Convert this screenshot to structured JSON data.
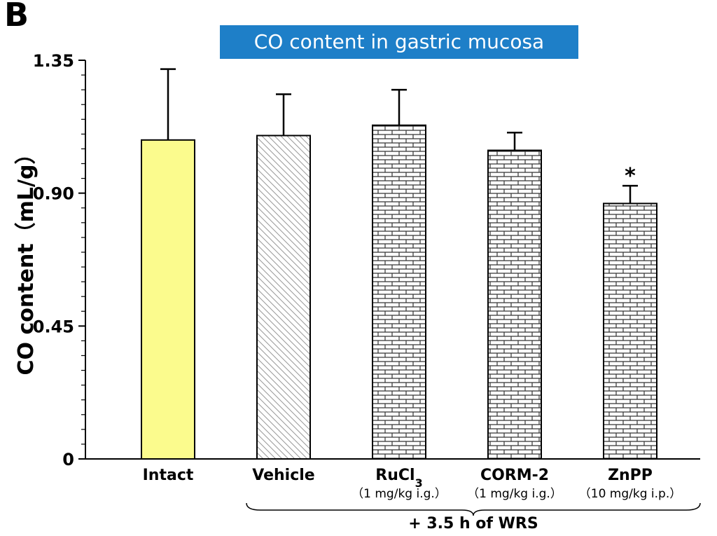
{
  "panel_label": "B",
  "chart_data": {
    "type": "bar",
    "title": "CO content in gastric mucosa",
    "xlabel": "",
    "ylabel": "CO content（mL/g）",
    "ylim": [
      0,
      1.35
    ],
    "yticks": [
      "0",
      "0.45",
      "0.90",
      "1.35"
    ],
    "grid": false,
    "categories": [
      {
        "name": "Intact",
        "sub": ""
      },
      {
        "name": "Vehicle",
        "sub": ""
      },
      {
        "name": "RuCl",
        "name_subscript": "3",
        "sub": "（1 mg/kg i.g.）"
      },
      {
        "name": "CORM-2",
        "sub": "（1 mg/kg i.g.）"
      },
      {
        "name": "ZnPP",
        "sub": "（10 mg/kg i.p.）"
      }
    ],
    "values": [
      1.08,
      1.095,
      1.13,
      1.045,
      0.865
    ],
    "errors": [
      0.24,
      0.14,
      0.12,
      0.06,
      0.06
    ],
    "patterns": [
      "solid",
      "diagonal",
      "brick",
      "brick",
      "brick"
    ],
    "fill_colors": [
      "#fbfb8d",
      "#ffffff",
      "#ffffff",
      "#ffffff",
      "#ffffff"
    ],
    "significance": [
      "",
      "",
      "",
      "",
      "*"
    ],
    "group_brace_label": "+ 3.5 h of WRS"
  }
}
